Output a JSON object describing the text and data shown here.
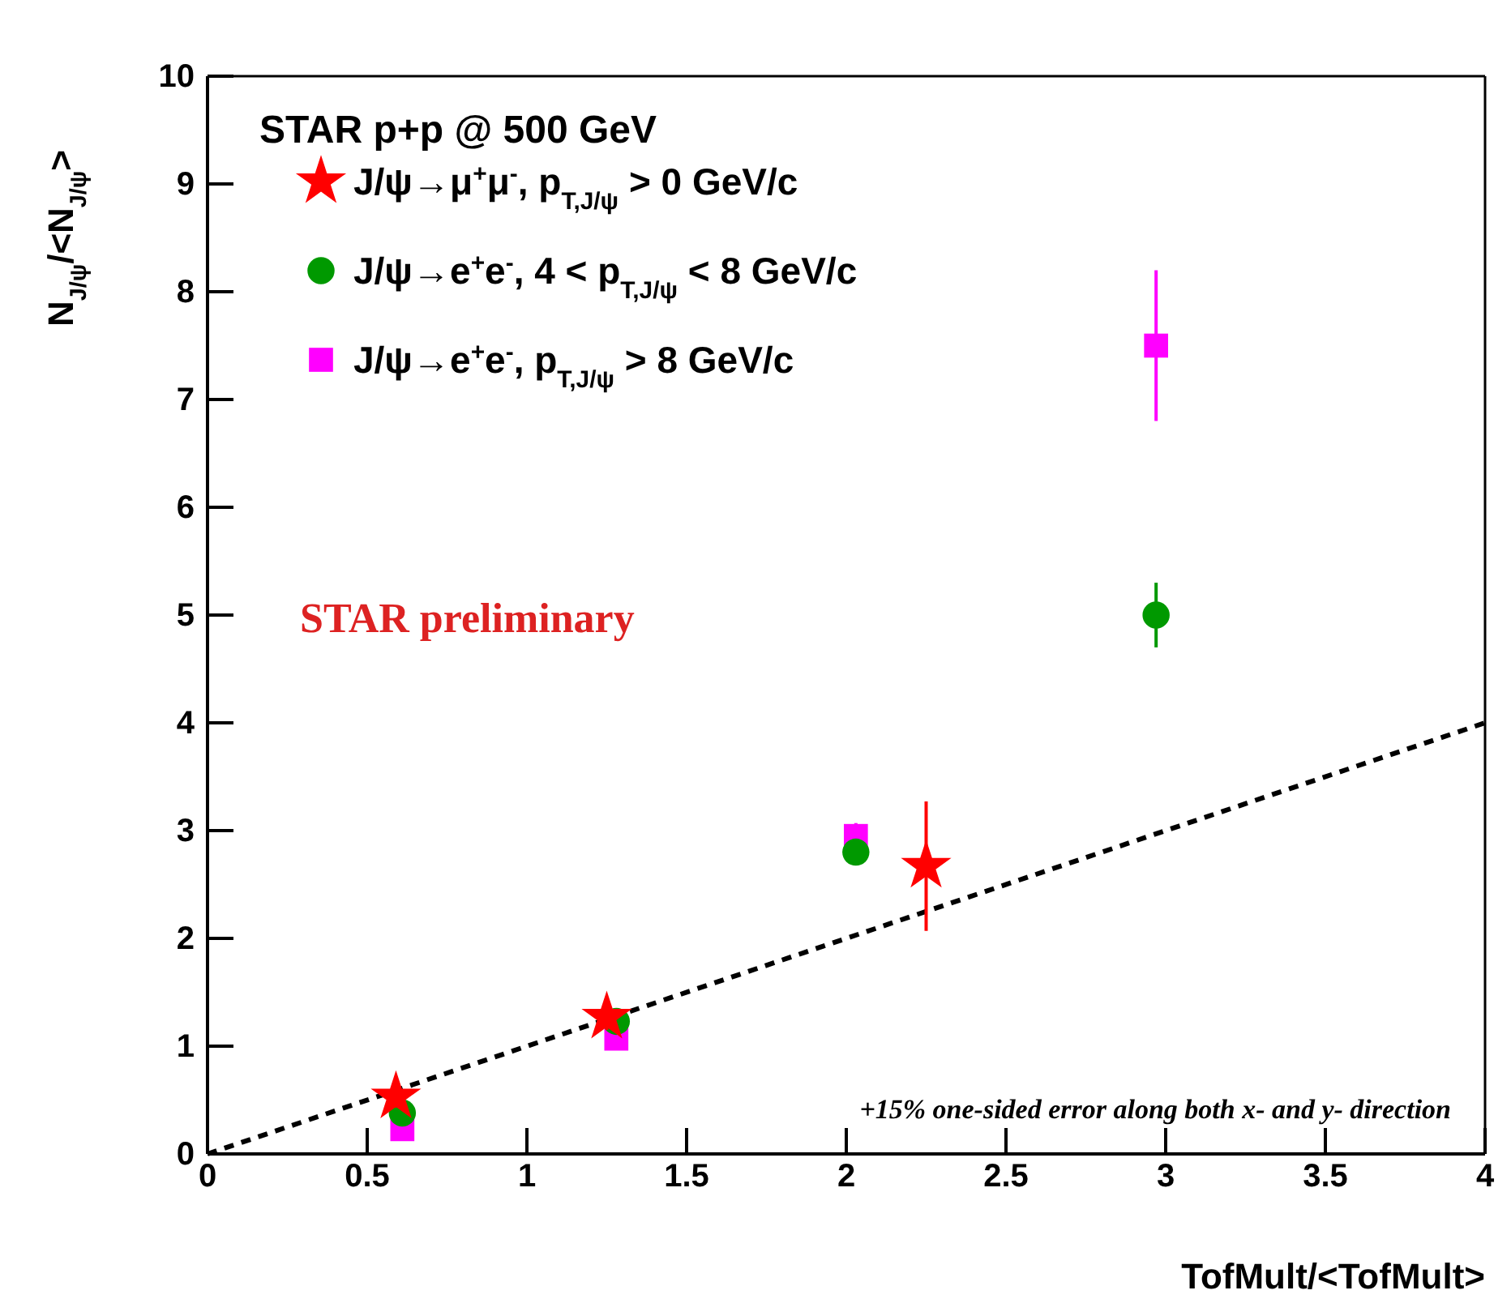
{
  "chart_data": {
    "type": "scatter",
    "title": "STAR p+p @ 500 GeV",
    "xlabel": "TofMult/<TofMult>",
    "ylabel": "N$_{J/ψ}$/<N$_{J/ψ}$>",
    "xlim": [
      0,
      4
    ],
    "ylim": [
      0,
      10
    ],
    "xticks": [
      0,
      0.5,
      1,
      1.5,
      2,
      2.5,
      3,
      3.5,
      4
    ],
    "yticks": [
      0,
      1,
      2,
      3,
      4,
      5,
      6,
      7,
      8,
      9,
      10
    ],
    "legend": "top left",
    "grid": false,
    "annotations": [
      "STAR preliminary",
      "+15% one-sided error along both x- and y- direction"
    ],
    "series": [
      {
        "name": "J/ψ→μ$^{+}$μ$^{-}$, p$_{T,J/ψ}$ > 0 GeV/c",
        "color": "#ff0000",
        "marker": "star",
        "x": [
          0.59,
          1.25,
          2.25
        ],
        "values": [
          0.53,
          1.27,
          2.67
        ],
        "errors": [
          0.1,
          0.12,
          0.6
        ]
      },
      {
        "name": "J/ψ→e$^{+}$e$^{-}$, 4 < p$_{T,J/ψ}$ < 8 GeV/c",
        "color": "#009900",
        "marker": "circle",
        "x": [
          0.61,
          1.28,
          2.03,
          2.97
        ],
        "values": [
          0.38,
          1.23,
          2.8,
          5.0
        ],
        "errors": [
          0.05,
          0.08,
          0.12,
          0.3
        ]
      },
      {
        "name": "J/ψ→e$^{+}$e$^{-}$, p$_{T,J/ψ}$ > 8 GeV/c",
        "color": "#ff00ff",
        "marker": "square",
        "x": [
          0.61,
          1.28,
          2.03,
          2.97
        ],
        "values": [
          0.23,
          1.07,
          2.95,
          7.5
        ],
        "errors": [
          0.05,
          0.08,
          0.12,
          0.7
        ]
      },
      {
        "type": "line",
        "color": "#000000",
        "line_style": "dashed",
        "marker": "none",
        "x": [
          0,
          4
        ],
        "values": [
          0,
          4
        ]
      }
    ]
  }
}
